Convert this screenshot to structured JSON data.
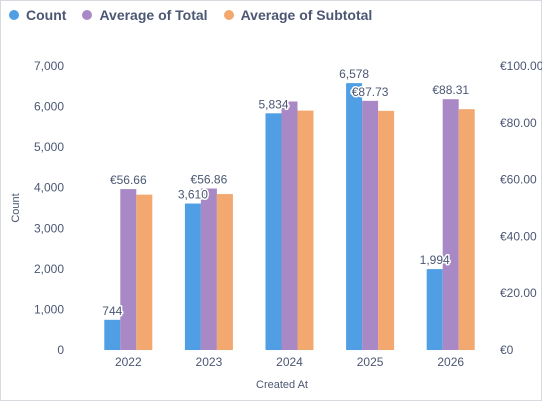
{
  "chart_data": {
    "type": "bar",
    "categories": [
      "2022",
      "2023",
      "2024",
      "2025",
      "2026"
    ],
    "series": [
      {
        "name": "Count",
        "axis": "left",
        "color": "#509ee3",
        "values": [
          744,
          3610,
          5834,
          6578,
          1994
        ]
      },
      {
        "name": "Average of Total",
        "axis": "right",
        "color": "#a989c5",
        "values": [
          56.66,
          56.86,
          87.5,
          87.73,
          88.31
        ]
      },
      {
        "name": "Average of Subtotal",
        "axis": "right",
        "color": "#f2a86f",
        "values": [
          54.7,
          54.9,
          84.3,
          84.2,
          84.8
        ]
      }
    ],
    "data_labels": [
      {
        "series": 0,
        "index": 0,
        "text": "744"
      },
      {
        "series": 0,
        "index": 1,
        "text": "3,610"
      },
      {
        "series": 0,
        "index": 2,
        "text": "5,834"
      },
      {
        "series": 0,
        "index": 3,
        "text": "6,578"
      },
      {
        "series": 0,
        "index": 4,
        "text": "1,994"
      },
      {
        "series": 1,
        "index": 0,
        "text": "€56.66"
      },
      {
        "series": 1,
        "index": 1,
        "text": "€56.86"
      },
      {
        "series": 1,
        "index": 3,
        "text": "€87.73"
      },
      {
        "series": 1,
        "index": 4,
        "text": "€88.31"
      }
    ],
    "xlabel": "Created At",
    "ylabel": "Count",
    "ylim": [
      0,
      7000
    ],
    "yticks": [
      0,
      1000,
      2000,
      3000,
      4000,
      5000,
      6000,
      7000
    ],
    "ytick_labels": [
      "0",
      "1,000",
      "2,000",
      "3,000",
      "4,000",
      "5,000",
      "6,000",
      "7,000"
    ],
    "y2lim": [
      0,
      100
    ],
    "y2ticks": [
      0,
      20,
      40,
      60,
      80,
      100
    ],
    "y2tick_labels": [
      "€0",
      "€20.00",
      "€40.00",
      "€60.00",
      "€80.00",
      "€100.00"
    ],
    "legend_position": "top-left",
    "grid": false
  }
}
